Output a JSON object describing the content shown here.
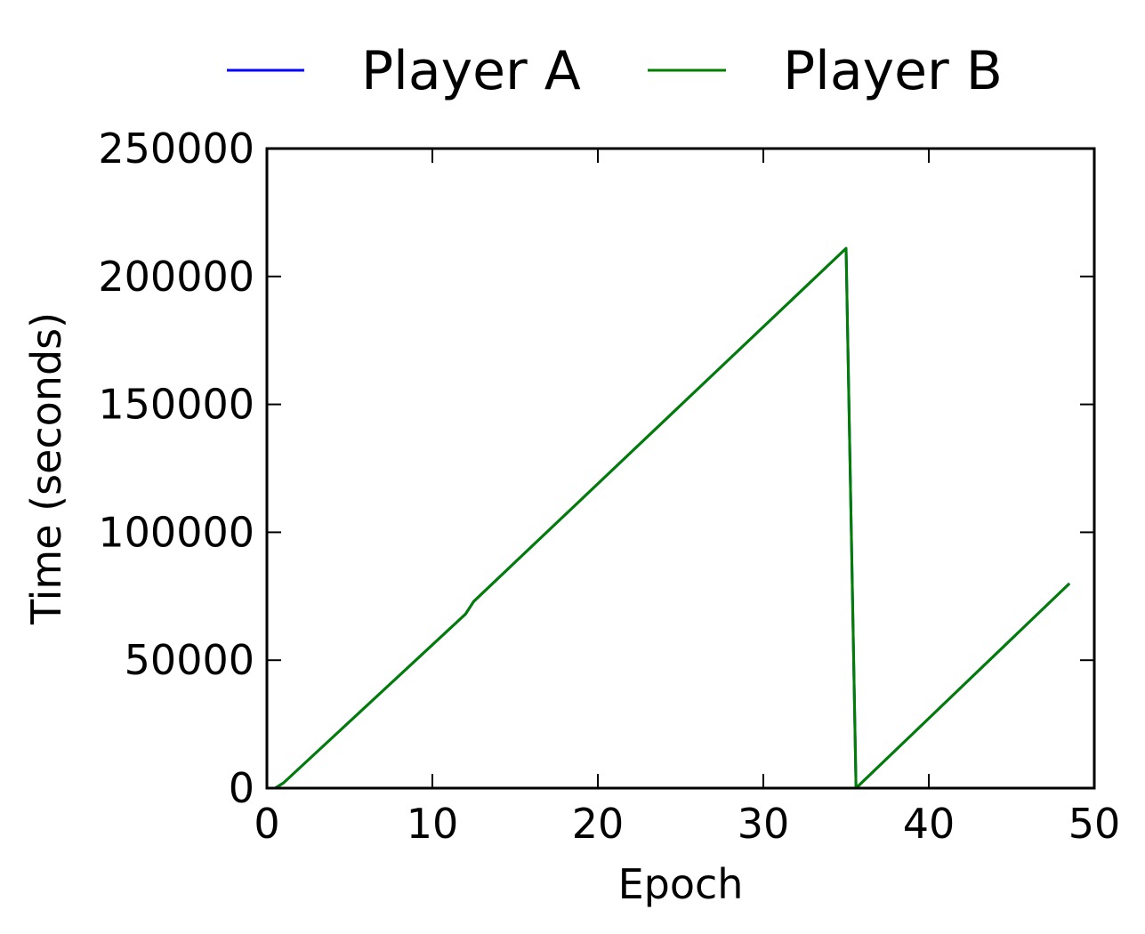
{
  "chart_data": {
    "type": "line",
    "title": "",
    "xlabel": "Epoch",
    "ylabel": "Time (seconds)",
    "xlim": [
      0,
      50
    ],
    "ylim": [
      0,
      250000
    ],
    "xticks": [
      0,
      10,
      20,
      30,
      40,
      50
    ],
    "yticks": [
      0,
      50000,
      100000,
      150000,
      200000,
      250000
    ],
    "xtick_labels": [
      "0",
      "10",
      "20",
      "30",
      "40",
      "50"
    ],
    "ytick_labels": [
      "0",
      "50000",
      "100000",
      "150000",
      "200000",
      "250000"
    ],
    "grid": false,
    "legend_position": "top-center",
    "series": [
      {
        "name": "Player A",
        "color": "#0000ff",
        "x": [
          0.5,
          1,
          12,
          12.5,
          35,
          35.6,
          48.5
        ],
        "y": [
          0,
          2000,
          68000,
          73000,
          211000,
          0,
          80000
        ]
      },
      {
        "name": "Player B",
        "color": "#007f00",
        "x": [
          0.5,
          1,
          12,
          12.5,
          35,
          35.6,
          48.5
        ],
        "y": [
          0,
          2000,
          68000,
          73000,
          211000,
          0,
          80000
        ]
      }
    ]
  }
}
